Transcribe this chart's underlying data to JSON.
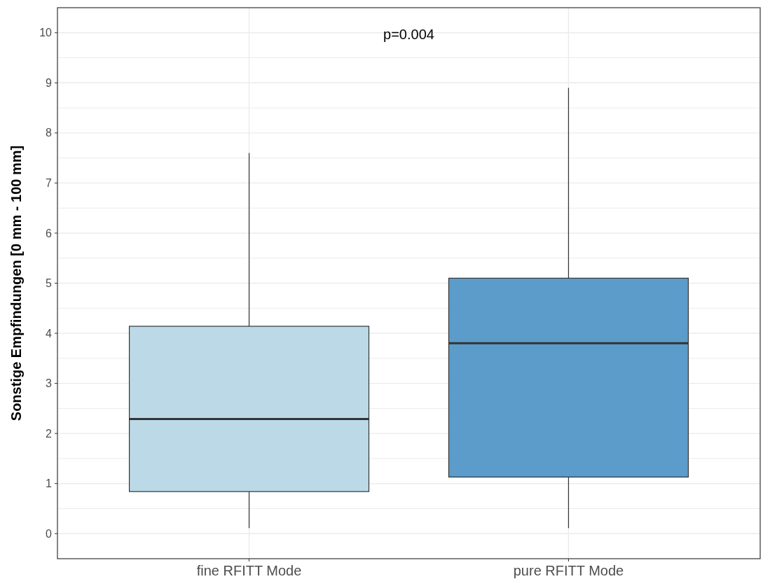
{
  "chart_data": {
    "type": "box",
    "ylabel": "Sonstige Empfindungen [0 mm - 100 mm]",
    "categories": [
      "fine RFITT Mode",
      "pure RFITT Mode"
    ],
    "colors": [
      "#bcd9e8",
      "#5b9ccb"
    ],
    "boxes": [
      {
        "low": 0.11,
        "q1": 0.84,
        "median": 2.29,
        "q3": 4.14,
        "high": 7.6
      },
      {
        "low": 0.11,
        "q1": 1.13,
        "median": 3.8,
        "q3": 5.1,
        "high": 8.9
      }
    ],
    "ylim": [
      -0.5,
      10.5
    ],
    "yticks": [
      0,
      {
        "value": 0.5,
        "label": null
      },
      1,
      {
        "value": 1.5,
        "label": null
      },
      2,
      {
        "value": 2.5,
        "label": null
      },
      3,
      {
        "value": 3.5,
        "label": null
      },
      4,
      {
        "value": 4.5,
        "label": null
      },
      5,
      {
        "value": 5.5,
        "label": null
      },
      6,
      {
        "value": 6.5,
        "label": null
      },
      7,
      {
        "value": 7.5,
        "label": null
      },
      8,
      {
        "value": 8.5,
        "label": null
      },
      9,
      {
        "value": 9.5,
        "label": null
      },
      10
    ],
    "grid": true,
    "annotations": [
      "p=0.004"
    ]
  }
}
